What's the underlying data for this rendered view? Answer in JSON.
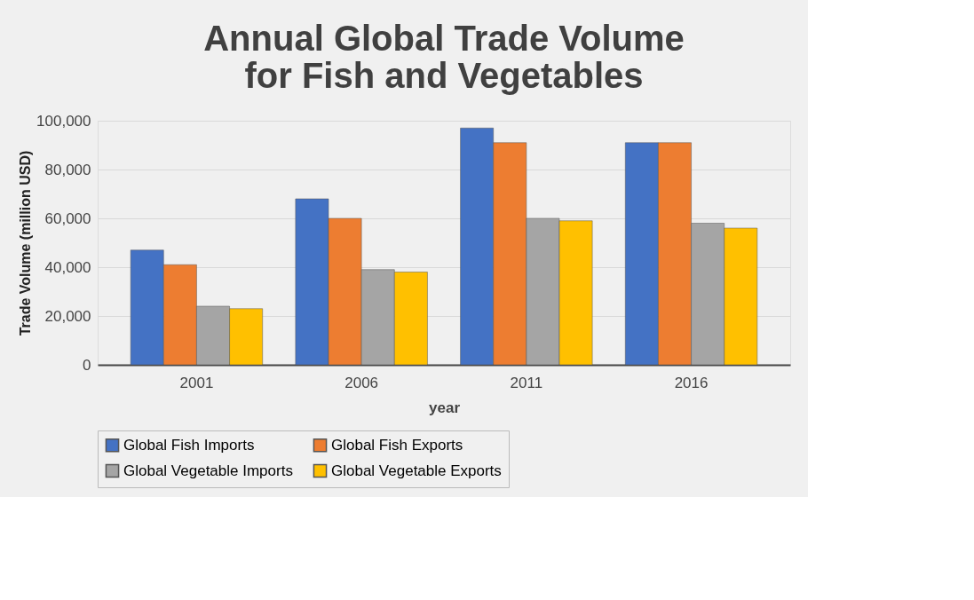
{
  "chart_data": {
    "type": "bar",
    "title": "Annual Global Trade Volume for Fish and Vegetables",
    "xlabel": "year",
    "ylabel": "Trade Volume (million USD)",
    "categories": [
      "2001",
      "2006",
      "2011",
      "2016"
    ],
    "series": [
      {
        "name": "Global Fish Imports",
        "color": "#4472c4",
        "values": [
          47000,
          68000,
          97000,
          91000
        ]
      },
      {
        "name": "Global Fish Exports",
        "color": "#ed7d31",
        "values": [
          41000,
          60000,
          91000,
          91000
        ]
      },
      {
        "name": "Global Vegetable Imports",
        "color": "#a5a5a5",
        "values": [
          24000,
          39000,
          60000,
          58000
        ]
      },
      {
        "name": "Global Vegetable Exports",
        "color": "#ffc000",
        "values": [
          23000,
          38000,
          59000,
          56000
        ]
      }
    ],
    "ylim": [
      0,
      100000
    ],
    "yticks": [
      {
        "value": 0,
        "label": "0"
      },
      {
        "value": 20000,
        "label": "20,000"
      },
      {
        "value": 40000,
        "label": "40,000"
      },
      {
        "value": 60000,
        "label": "60,000"
      },
      {
        "value": 80000,
        "label": "80,000"
      },
      {
        "value": 100000,
        "label": "100,000"
      }
    ],
    "grid": "y",
    "legend": "bottom"
  }
}
